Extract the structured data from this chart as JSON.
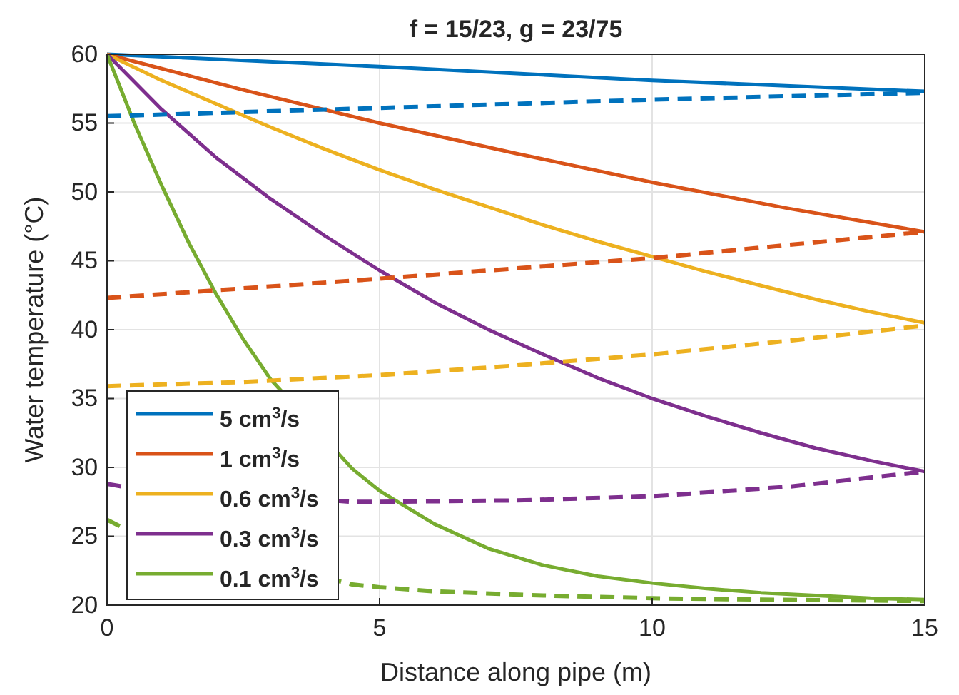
{
  "chart_data": {
    "type": "line",
    "title": "f = 15/23, g = 23/75",
    "xlabel": "Distance along pipe (m)",
    "ylabel": "Water temperature (°C)",
    "xlim": [
      0,
      15
    ],
    "ylim": [
      20,
      60
    ],
    "xticks": [
      0,
      5,
      10,
      15
    ],
    "yticks": [
      20,
      25,
      30,
      35,
      40,
      45,
      50,
      55,
      60
    ],
    "grid": true,
    "legend": "bottom left",
    "line_style": "solid",
    "series": [
      {
        "name": "5 cm$^{3}$/s",
        "color": "#0072bd",
        "x": [
          0,
          5,
          10,
          15
        ],
        "values": [
          60,
          59.1,
          58.1,
          57.3
        ]
      },
      {
        "name": "1 cm$^{3}$/s",
        "color": "#d95319",
        "x": [
          0,
          2.5,
          5,
          7.5,
          10,
          12.5,
          15
        ],
        "values": [
          60,
          57.4,
          55,
          52.8,
          50.7,
          48.8,
          47.1
        ]
      },
      {
        "name": "0.6 cm$^{3}$/s",
        "color": "#edb120",
        "x": [
          0,
          1,
          2,
          3,
          4,
          5,
          6,
          7,
          8,
          9,
          10,
          11,
          12,
          13,
          14,
          15
        ],
        "values": [
          60,
          58.1,
          56.4,
          54.7,
          53.1,
          51.6,
          50.2,
          48.9,
          47.6,
          46.4,
          45.3,
          44.2,
          43.2,
          42.2,
          41.3,
          40.5
        ]
      },
      {
        "name": "0.3 cm$^{3}$/s",
        "color": "#7e2f8e",
        "x": [
          0,
          1,
          2,
          3,
          4,
          5,
          6,
          7,
          8,
          9,
          10,
          11,
          12,
          13,
          14,
          15
        ],
        "values": [
          60,
          56,
          52.5,
          49.5,
          46.8,
          44.3,
          42,
          40,
          38.2,
          36.5,
          35,
          33.7,
          32.5,
          31.4,
          30.5,
          29.7
        ]
      },
      {
        "name": "0.1 cm$^{3}$/s",
        "color": "#77ac30",
        "x": [
          0,
          0.5,
          1,
          1.5,
          2,
          2.5,
          3,
          4.5,
          5,
          6,
          7,
          8,
          9,
          10,
          11,
          12,
          13,
          14,
          15
        ],
        "values": [
          60,
          55,
          50.5,
          46.3,
          42.6,
          39.3,
          36.4,
          29.9,
          28.3,
          25.9,
          24.1,
          22.9,
          22.1,
          21.6,
          21.2,
          20.9,
          20.7,
          20.5,
          20.4
        ]
      },
      {
        "color": "#0072bd",
        "line_style": "dashed",
        "x": [
          0,
          5,
          10,
          15
        ],
        "values": [
          55.5,
          56.1,
          56.7,
          57.2
        ]
      },
      {
        "color": "#d95319",
        "line_style": "dashed",
        "x": [
          0,
          5,
          10,
          15
        ],
        "values": [
          42.3,
          43.7,
          45.2,
          47.1
        ]
      },
      {
        "color": "#edb120",
        "line_style": "dashed",
        "x": [
          0,
          2.5,
          5,
          7.5,
          10,
          12.5,
          15
        ],
        "values": [
          35.9,
          36.2,
          36.7,
          37.4,
          38.2,
          39.2,
          40.3
        ]
      },
      {
        "color": "#7e2f8e",
        "line_style": "dashed",
        "x": [
          0,
          0.3,
          4.5,
          5,
          7.5,
          10,
          12.5,
          15
        ],
        "values": [
          28.8,
          28.6,
          27.5,
          27.5,
          27.6,
          27.9,
          28.6,
          29.7
        ]
      },
      {
        "color": "#77ac30",
        "line_style": "dashed",
        "x": [
          0,
          0.3,
          4.5,
          5,
          6,
          8,
          10,
          12,
          15
        ],
        "values": [
          26.2,
          25.6,
          21.5,
          21.3,
          21,
          20.7,
          20.5,
          20.4,
          20.3
        ]
      }
    ]
  }
}
